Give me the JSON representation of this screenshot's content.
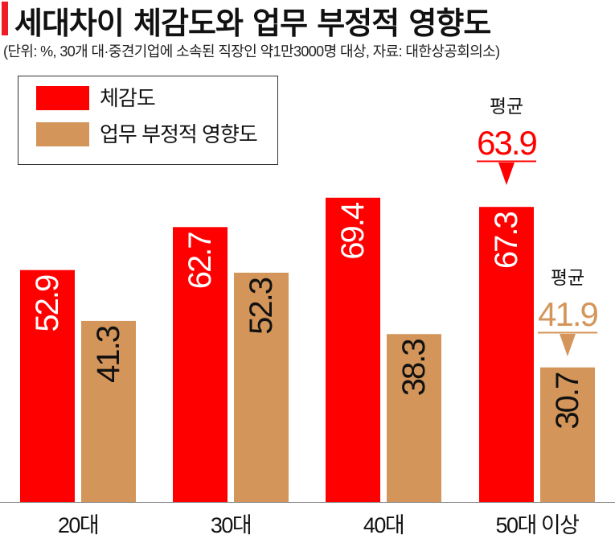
{
  "title": "세대차이 체감도와 업무 부정적 영향도",
  "subtitle": "(단위: %, 30개 대·중견기업에 소속된 직장인 약1만3000명 대상, 자료: 대한상공회의소)",
  "colors": {
    "accent": "#ee1c24",
    "series1": "#ff0000",
    "series2": "#d4955a"
  },
  "chart_data": {
    "type": "bar",
    "categories": [
      "20대",
      "30대",
      "40대",
      "50대 이상"
    ],
    "series": [
      {
        "name": "체감도",
        "values": [
          52.9,
          62.7,
          69.4,
          67.3
        ],
        "color": "#ff0000"
      },
      {
        "name": "업무 부정적 영향도",
        "values": [
          41.3,
          52.3,
          38.3,
          30.7
        ],
        "color": "#d4955a"
      }
    ],
    "annotations": [
      {
        "label": "평균",
        "value": "63.9",
        "series": 0,
        "category": 3
      },
      {
        "label": "평균",
        "value": "41.9",
        "series": 1,
        "category": 3
      }
    ],
    "ylim": [
      0,
      100
    ],
    "legend": "top-left",
    "grid": false
  }
}
